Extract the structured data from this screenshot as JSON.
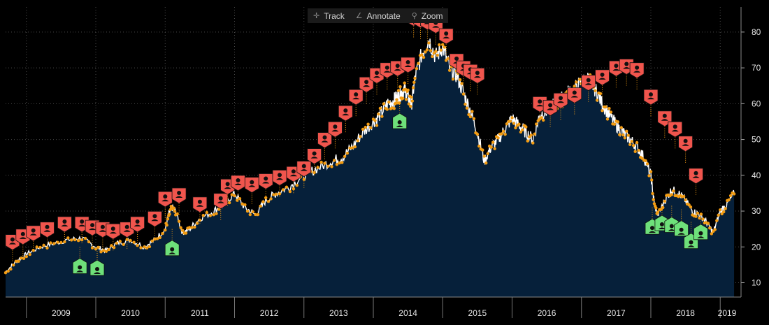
{
  "toolbar": {
    "track_label": "Track",
    "annotate_label": "Annotate",
    "zoom_label": "Zoom",
    "track_icon": "crosshair-icon",
    "annotate_icon": "pencil-icon",
    "zoom_icon": "magnifier-icon"
  },
  "colors": {
    "background": "#000000",
    "area_fill": "#06203a",
    "price_line": "#ffffff",
    "trade_dots": "#f39c12",
    "sell_marker": "#f0554d",
    "buy_marker": "#6ee07a",
    "grid": "#4a4a4a",
    "axis_text": "#e6e6e6"
  },
  "chart_data": {
    "type": "area",
    "title": "",
    "xlabel": "",
    "ylabel": "",
    "ylim": [
      6,
      87
    ],
    "xlim": [
      2008.7,
      2019.3
    ],
    "y_ticks": [
      10,
      20,
      30,
      40,
      50,
      60,
      70,
      80
    ],
    "x_tick_labels": [
      "2009",
      "2010",
      "2011",
      "2012",
      "2013",
      "2014",
      "2015",
      "2016",
      "2017",
      "2018",
      "2019"
    ],
    "x_tick_positions": [
      2009,
      2010,
      2011,
      2012,
      2013,
      2014,
      2015,
      2016,
      2017,
      2018,
      2019
    ],
    "series": [
      {
        "name": "Price",
        "x": [
          2008.7,
          2008.85,
          2009.0,
          2009.2,
          2009.4,
          2009.6,
          2009.8,
          2010.0,
          2010.15,
          2010.3,
          2010.5,
          2010.7,
          2010.85,
          2011.0,
          2011.05,
          2011.1,
          2011.15,
          2011.25,
          2011.35,
          2011.5,
          2011.7,
          2011.85,
          2012.0,
          2012.15,
          2012.3,
          2012.45,
          2012.6,
          2012.8,
          2013.0,
          2013.2,
          2013.4,
          2013.55,
          2013.7,
          2013.85,
          2014.0,
          2014.1,
          2014.2,
          2014.3,
          2014.35,
          2014.4,
          2014.45,
          2014.5,
          2014.55,
          2014.6,
          2014.7,
          2014.8,
          2014.9,
          2015.0,
          2015.1,
          2015.2,
          2015.3,
          2015.4,
          2015.5,
          2015.6,
          2015.7,
          2015.8,
          2015.9,
          2016.0,
          2016.1,
          2016.2,
          2016.3,
          2016.4,
          2016.5,
          2016.6,
          2016.7,
          2016.8,
          2016.9,
          2017.0,
          2017.1,
          2017.2,
          2017.3,
          2017.4,
          2017.5,
          2017.6,
          2017.7,
          2017.8,
          2017.9,
          2018.0,
          2018.05,
          2018.1,
          2018.2,
          2018.3,
          2018.4,
          2018.5,
          2018.6,
          2018.7,
          2018.8,
          2018.9,
          2019.0,
          2019.1,
          2019.2
        ],
        "values": [
          13,
          16,
          18,
          20,
          21,
          22,
          22.5,
          20,
          19,
          21,
          22,
          20,
          22,
          25,
          29,
          31,
          30,
          24,
          25,
          28,
          30,
          32,
          35,
          31,
          29,
          33,
          35,
          37,
          40,
          42,
          44,
          45,
          48,
          52,
          55,
          57,
          60,
          61,
          62,
          63,
          64,
          62,
          60,
          67,
          74,
          78,
          73,
          76,
          70,
          68,
          63,
          58,
          52,
          44,
          48,
          50,
          53,
          56,
          54,
          52,
          50,
          57,
          58,
          60,
          61,
          63,
          64,
          66,
          67,
          64,
          60,
          57,
          54,
          52,
          50,
          48,
          45,
          40,
          32,
          29,
          33,
          36,
          35,
          33,
          30,
          29,
          27,
          24,
          30,
          32,
          35
        ]
      }
    ],
    "buy_markers": [
      {
        "x": 2009.77,
        "y": 14.5
      },
      {
        "x": 2010.02,
        "y": 14.0
      },
      {
        "x": 2011.1,
        "y": 19.5
      },
      {
        "x": 2014.38,
        "y": 55.0
      },
      {
        "x": 2018.02,
        "y": 25.5
      },
      {
        "x": 2018.16,
        "y": 26.5
      },
      {
        "x": 2018.3,
        "y": 26.0
      },
      {
        "x": 2018.44,
        "y": 25.0
      },
      {
        "x": 2018.58,
        "y": 21.5
      },
      {
        "x": 2018.72,
        "y": 24.0
      }
    ],
    "sell_markers": [
      {
        "x": 2008.8,
        "y": 21.5
      },
      {
        "x": 2008.95,
        "y": 23.0
      },
      {
        "x": 2009.1,
        "y": 24.0
      },
      {
        "x": 2009.3,
        "y": 25.0
      },
      {
        "x": 2009.55,
        "y": 26.5
      },
      {
        "x": 2009.8,
        "y": 26.5
      },
      {
        "x": 2009.95,
        "y": 25.5
      },
      {
        "x": 2010.1,
        "y": 25.0
      },
      {
        "x": 2010.25,
        "y": 24.5
      },
      {
        "x": 2010.45,
        "y": 25.0
      },
      {
        "x": 2010.6,
        "y": 26.5
      },
      {
        "x": 2010.85,
        "y": 28.0
      },
      {
        "x": 2011.0,
        "y": 33.5
      },
      {
        "x": 2011.2,
        "y": 34.5
      },
      {
        "x": 2011.5,
        "y": 32.0
      },
      {
        "x": 2011.8,
        "y": 33.0
      },
      {
        "x": 2011.9,
        "y": 37.0
      },
      {
        "x": 2012.05,
        "y": 38.0
      },
      {
        "x": 2012.25,
        "y": 37.5
      },
      {
        "x": 2012.45,
        "y": 38.5
      },
      {
        "x": 2012.65,
        "y": 39.5
      },
      {
        "x": 2012.85,
        "y": 40.5
      },
      {
        "x": 2013.0,
        "y": 42.0
      },
      {
        "x": 2013.15,
        "y": 45.5
      },
      {
        "x": 2013.3,
        "y": 50.0
      },
      {
        "x": 2013.45,
        "y": 53.0
      },
      {
        "x": 2013.6,
        "y": 57.5
      },
      {
        "x": 2013.75,
        "y": 62.0
      },
      {
        "x": 2013.9,
        "y": 65.5
      },
      {
        "x": 2014.05,
        "y": 68.0
      },
      {
        "x": 2014.2,
        "y": 69.5
      },
      {
        "x": 2014.35,
        "y": 70.0
      },
      {
        "x": 2014.5,
        "y": 71.0
      },
      {
        "x": 2014.58,
        "y": 84.0
      },
      {
        "x": 2014.68,
        "y": 83.5
      },
      {
        "x": 2014.78,
        "y": 83.0
      },
      {
        "x": 2014.9,
        "y": 82.0
      },
      {
        "x": 2015.05,
        "y": 79.0
      },
      {
        "x": 2015.2,
        "y": 72.0
      },
      {
        "x": 2015.3,
        "y": 70.0
      },
      {
        "x": 2015.4,
        "y": 69.0
      },
      {
        "x": 2015.5,
        "y": 68.0
      },
      {
        "x": 2016.4,
        "y": 60.0
      },
      {
        "x": 2016.55,
        "y": 59.0
      },
      {
        "x": 2016.7,
        "y": 61.0
      },
      {
        "x": 2016.9,
        "y": 62.5
      },
      {
        "x": 2017.1,
        "y": 66.0
      },
      {
        "x": 2017.3,
        "y": 67.5
      },
      {
        "x": 2017.5,
        "y": 70.0
      },
      {
        "x": 2017.65,
        "y": 70.5
      },
      {
        "x": 2017.8,
        "y": 69.5
      },
      {
        "x": 2018.0,
        "y": 62.0
      },
      {
        "x": 2018.2,
        "y": 56.0
      },
      {
        "x": 2018.35,
        "y": 53.0
      },
      {
        "x": 2018.5,
        "y": 49.0
      },
      {
        "x": 2018.65,
        "y": 40.0
      }
    ]
  }
}
